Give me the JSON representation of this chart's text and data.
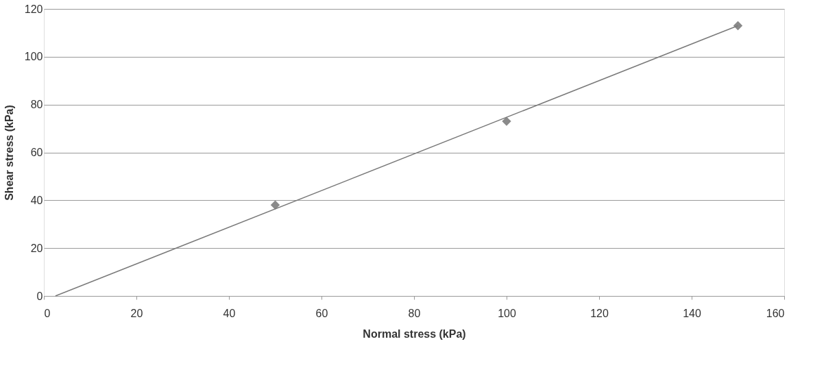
{
  "chart_data": {
    "type": "scatter",
    "xlabel": "Normal stress (kPa)",
    "ylabel": "Shear stress (kPa)",
    "xlim": [
      0,
      160
    ],
    "xticks": [
      0,
      20,
      40,
      60,
      80,
      100,
      120,
      140,
      160
    ],
    "ylim": [
      0,
      120
    ],
    "yticks": [
      0,
      20,
      40,
      60,
      80,
      100,
      120
    ],
    "grid": "y",
    "marker": "diamond",
    "series": [
      {
        "color": "#8a8a8a",
        "x": [
          50,
          100,
          150
        ],
        "values": [
          38,
          73,
          113
        ]
      },
      {
        "type": "line",
        "color": "#7a7a7a",
        "x": [
          2.5,
          150
        ],
        "values": [
          0,
          113
        ],
        "line_style": "solid",
        "marker": "none"
      }
    ]
  }
}
